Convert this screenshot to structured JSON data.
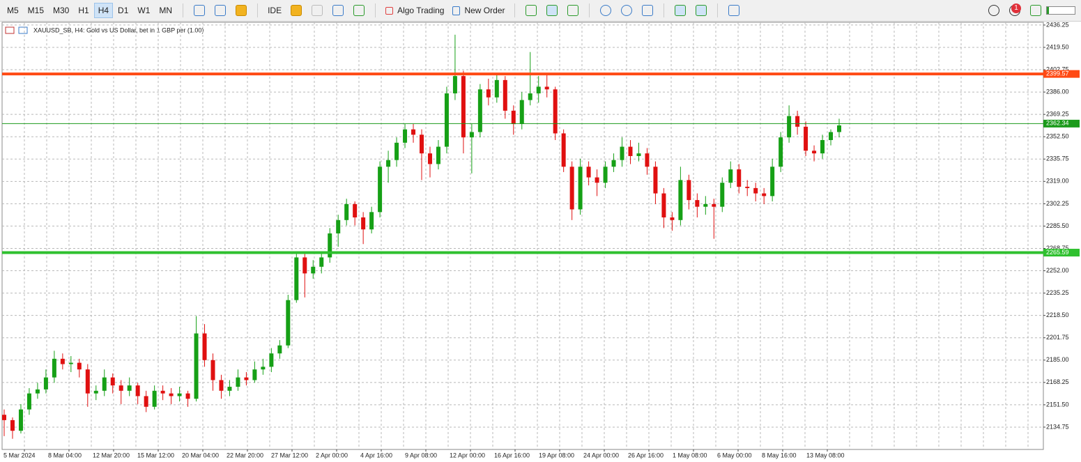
{
  "toolbar": {
    "timeframes": [
      "M5",
      "M15",
      "M30",
      "H1",
      "H4",
      "D1",
      "W1",
      "MN"
    ],
    "buttons": [
      "IDE",
      "Algo Trading",
      "New Order"
    ],
    "notifications": "1"
  },
  "chart_data": {
    "type": "candlestick",
    "title": "XAUUSD_SB, H4: Gold vs US Dollar, bet in 1 GBP per (1.00)",
    "up_color": "#16a016",
    "down_color": "#e01010",
    "candles": [
      [
        2144,
        2148,
        2128,
        2140
      ],
      [
        2140,
        2142,
        2126,
        2132
      ],
      [
        2132,
        2152,
        2130,
        2148
      ],
      [
        2148,
        2164,
        2144,
        2160
      ],
      [
        2160,
        2168,
        2156,
        2163
      ],
      [
        2163,
        2178,
        2160,
        2172
      ],
      [
        2172,
        2192,
        2168,
        2186
      ],
      [
        2186,
        2190,
        2178,
        2182
      ],
      [
        2182,
        2188,
        2176,
        2183
      ],
      [
        2183,
        2186,
        2172,
        2178
      ],
      [
        2178,
        2182,
        2150,
        2160
      ],
      [
        2160,
        2166,
        2155,
        2162
      ],
      [
        2162,
        2178,
        2158,
        2172
      ],
      [
        2172,
        2175,
        2160,
        2166
      ],
      [
        2166,
        2170,
        2152,
        2162
      ],
      [
        2162,
        2172,
        2158,
        2166
      ],
      [
        2166,
        2168,
        2152,
        2158
      ],
      [
        2158,
        2162,
        2146,
        2150
      ],
      [
        2150,
        2166,
        2148,
        2162
      ],
      [
        2162,
        2166,
        2155,
        2160
      ],
      [
        2160,
        2164,
        2152,
        2158
      ],
      [
        2158,
        2165,
        2154,
        2160
      ],
      [
        2160,
        2162,
        2150,
        2156
      ],
      [
        2156,
        2218,
        2154,
        2205
      ],
      [
        2205,
        2212,
        2180,
        2185
      ],
      [
        2185,
        2190,
        2162,
        2170
      ],
      [
        2170,
        2174,
        2156,
        2162
      ],
      [
        2162,
        2170,
        2158,
        2165
      ],
      [
        2165,
        2178,
        2162,
        2172
      ],
      [
        2172,
        2176,
        2166,
        2170
      ],
      [
        2170,
        2184,
        2168,
        2178
      ],
      [
        2178,
        2186,
        2174,
        2180
      ],
      [
        2180,
        2194,
        2176,
        2190
      ],
      [
        2190,
        2200,
        2186,
        2196
      ],
      [
        2196,
        2234,
        2194,
        2230
      ],
      [
        2230,
        2266,
        2228,
        2262
      ],
      [
        2262,
        2266,
        2232,
        2250
      ],
      [
        2250,
        2260,
        2246,
        2255
      ],
      [
        2255,
        2266,
        2250,
        2262
      ],
      [
        2262,
        2284,
        2258,
        2280
      ],
      [
        2280,
        2294,
        2270,
        2290
      ],
      [
        2290,
        2306,
        2286,
        2302
      ],
      [
        2302,
        2304,
        2286,
        2292
      ],
      [
        2292,
        2296,
        2272,
        2283
      ],
      [
        2283,
        2300,
        2280,
        2296
      ],
      [
        2296,
        2334,
        2292,
        2330
      ],
      [
        2330,
        2342,
        2318,
        2335
      ],
      [
        2335,
        2352,
        2330,
        2348
      ],
      [
        2348,
        2362,
        2344,
        2358
      ],
      [
        2358,
        2362,
        2348,
        2354
      ],
      [
        2354,
        2358,
        2320,
        2340
      ],
      [
        2340,
        2345,
        2322,
        2332
      ],
      [
        2332,
        2350,
        2328,
        2345
      ],
      [
        2345,
        2390,
        2340,
        2385
      ],
      [
        2385,
        2429,
        2380,
        2398
      ],
      [
        2398,
        2402,
        2340,
        2352
      ],
      [
        2352,
        2362,
        2325,
        2356
      ],
      [
        2356,
        2392,
        2352,
        2388
      ],
      [
        2388,
        2396,
        2376,
        2382
      ],
      [
        2382,
        2400,
        2378,
        2395
      ],
      [
        2395,
        2398,
        2366,
        2372
      ],
      [
        2372,
        2376,
        2354,
        2362
      ],
      [
        2362,
        2386,
        2358,
        2380
      ],
      [
        2380,
        2416,
        2376,
        2385
      ],
      [
        2385,
        2398,
        2378,
        2390
      ],
      [
        2390,
        2400,
        2382,
        2388
      ],
      [
        2388,
        2390,
        2350,
        2355
      ],
      [
        2355,
        2358,
        2326,
        2330
      ],
      [
        2330,
        2334,
        2290,
        2298
      ],
      [
        2298,
        2336,
        2294,
        2330
      ],
      [
        2330,
        2334,
        2316,
        2322
      ],
      [
        2322,
        2328,
        2308,
        2318
      ],
      [
        2318,
        2334,
        2314,
        2330
      ],
      [
        2330,
        2340,
        2326,
        2335
      ],
      [
        2335,
        2352,
        2330,
        2345
      ],
      [
        2345,
        2350,
        2332,
        2338
      ],
      [
        2338,
        2348,
        2334,
        2340
      ],
      [
        2340,
        2344,
        2324,
        2330
      ],
      [
        2330,
        2334,
        2302,
        2310
      ],
      [
        2310,
        2314,
        2284,
        2292
      ],
      [
        2292,
        2296,
        2282,
        2290
      ],
      [
        2290,
        2330,
        2286,
        2320
      ],
      [
        2320,
        2324,
        2298,
        2305
      ],
      [
        2305,
        2310,
        2292,
        2300
      ],
      [
        2300,
        2308,
        2294,
        2302
      ],
      [
        2302,
        2306,
        2276,
        2300
      ],
      [
        2300,
        2322,
        2296,
        2318
      ],
      [
        2318,
        2334,
        2314,
        2328
      ],
      [
        2328,
        2332,
        2310,
        2315
      ],
      [
        2315,
        2320,
        2308,
        2314
      ],
      [
        2314,
        2318,
        2304,
        2310
      ],
      [
        2310,
        2314,
        2302,
        2308
      ],
      [
        2308,
        2336,
        2304,
        2330
      ],
      [
        2330,
        2356,
        2326,
        2352
      ],
      [
        2352,
        2376,
        2348,
        2368
      ],
      [
        2368,
        2372,
        2354,
        2360
      ],
      [
        2360,
        2364,
        2338,
        2342
      ],
      [
        2342,
        2346,
        2334,
        2340
      ],
      [
        2340,
        2354,
        2336,
        2350
      ],
      [
        2350,
        2358,
        2346,
        2356
      ],
      [
        2356,
        2366,
        2352,
        2361
      ]
    ],
    "ylim": [
      2118,
      2438.3
    ],
    "yticks": [
      {
        "value": 2436.25,
        "label": "2436.25"
      },
      {
        "value": 2419.5,
        "label": "2419.50"
      },
      {
        "value": 2402.75,
        "label": "2402.75"
      },
      {
        "value": 2386,
        "label": "2386.00"
      },
      {
        "value": 2369.25,
        "label": "2369.25"
      },
      {
        "value": 2352.5,
        "label": "2352.50"
      },
      {
        "value": 2335.75,
        "label": "2335.75"
      },
      {
        "value": 2319,
        "label": "2319.00"
      },
      {
        "value": 2302.25,
        "label": "2302.25"
      },
      {
        "value": 2285.5,
        "label": "2285.50"
      },
      {
        "value": 2268.75,
        "label": "2268.75"
      },
      {
        "value": 2252,
        "label": "2252.00"
      },
      {
        "value": 2235.25,
        "label": "2235.25"
      },
      {
        "value": 2218.5,
        "label": "2218.50"
      },
      {
        "value": 2201.75,
        "label": "2201.75"
      },
      {
        "value": 2185,
        "label": "2185.00"
      },
      {
        "value": 2168.25,
        "label": "2168.25"
      },
      {
        "value": 2151.5,
        "label": "2151.50"
      },
      {
        "value": 2134.75,
        "label": "2134.75"
      }
    ],
    "x_labels": [
      "5 Mar 2024",
      "8 Mar 04:00",
      "12 Mar 20:00",
      "15 Mar 12:00",
      "20 Mar 04:00",
      "22 Mar 20:00",
      "27 Mar 12:00",
      "2 Apr 00:00",
      "4 Apr 16:00",
      "9 Apr 08:00",
      "12 Apr 00:00",
      "16 Apr 16:00",
      "19 Apr 08:00",
      "24 Apr 00:00",
      "26 Apr 16:00",
      "1 May 08:00",
      "6 May 00:00",
      "8 May 16:00",
      "13 May 08:00"
    ],
    "levels": [
      {
        "value": 2399.57,
        "color": "#ff4a14",
        "width": 4
      },
      {
        "value": 2265.59,
        "color": "#2fc02f",
        "width": 4
      },
      {
        "value": 2362.34,
        "color": "#1a9a1a",
        "width": 1
      }
    ],
    "grid": true
  }
}
